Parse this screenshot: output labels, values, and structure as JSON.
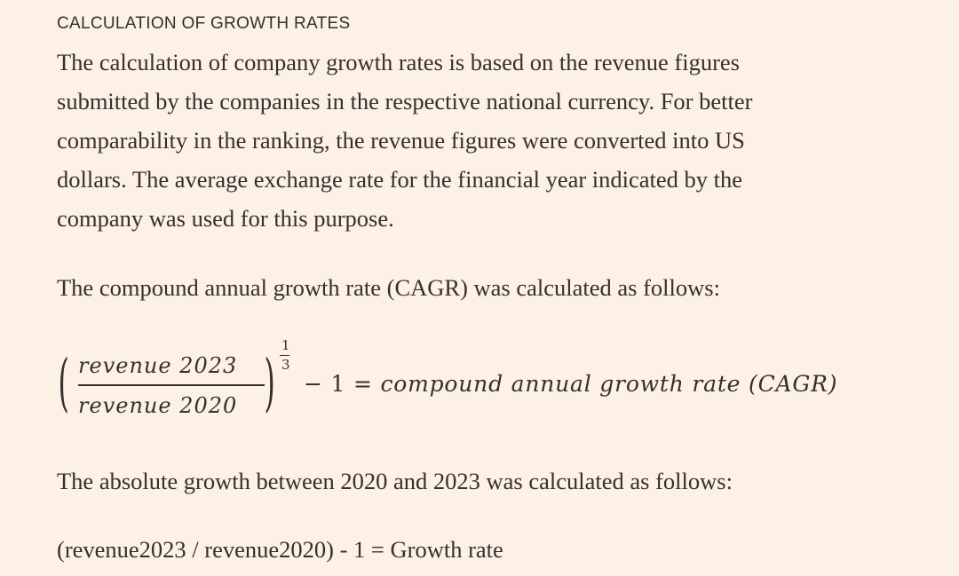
{
  "section": {
    "label": "CALCULATION OF GROWTH RATES"
  },
  "intro": {
    "lines": [
      "The calculation of company growth rates is based on the revenue figures",
      "submitted by the companies in the respective national currency. For better",
      "comparability in the ranking, the revenue figures were converted into US",
      "dollars. The average exchange rate for the financial year indicated by the",
      "company was used for this purpose."
    ]
  },
  "cagr": {
    "lead": "The compound annual growth rate (CAGR) was calculated as follows:",
    "formula": {
      "numerator": "revenue 2023",
      "denominator": "revenue 2020",
      "exponent_num": "1",
      "exponent_den": "3",
      "operator": "− 1 =",
      "result": "compound annual growth rate (CAGR)"
    }
  },
  "absolute": {
    "lead": "The absolute growth between 2020 and 2023 was calculated as follows:",
    "formula": "(revenue2023 / revenue2020) - 1 = Growth rate"
  }
}
